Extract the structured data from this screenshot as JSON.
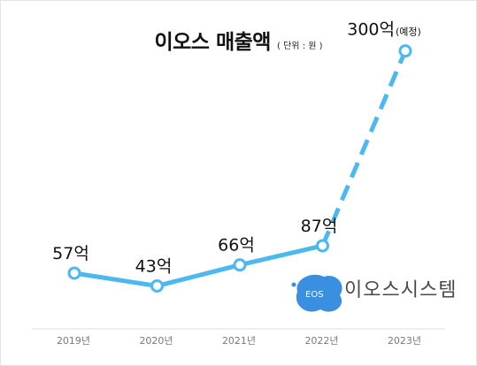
{
  "chart_data": {
    "type": "line",
    "title": "이오스 매출액",
    "unit_note": "( 단위 : 원 )",
    "categories": [
      "2019년",
      "2020년",
      "2021년",
      "2022년",
      "2023년"
    ],
    "values": [
      57,
      43,
      66,
      87,
      300
    ],
    "data_labels": [
      "57억",
      "43억",
      "66억",
      "87억",
      "300억"
    ],
    "forecast_note": "(예정)",
    "forecast_index": 4,
    "line_color": "#4cb8f0",
    "grid": false,
    "legend": "none"
  },
  "logo": {
    "mark_text": "EOS",
    "name": "이오스시스템",
    "color": "#3a8fe0"
  }
}
